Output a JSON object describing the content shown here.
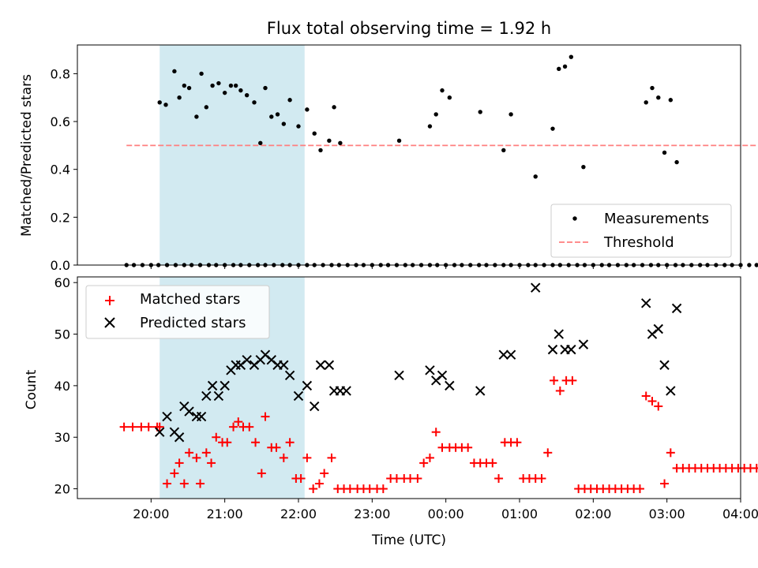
{
  "chart_data": [
    {
      "type": "scatter",
      "title": "Flux total observing time = 1.92 h",
      "ylabel": "Matched/Predicted stars",
      "xlabel": "",
      "ylim": [
        0,
        0.92
      ],
      "xlim_hours": [
        19.0,
        28.0
      ],
      "yticks": [
        "0.0",
        "0.2",
        "0.4",
        "0.6",
        "0.8"
      ],
      "legend": {
        "position": "lower-right",
        "entries": [
          "Measurements",
          "Threshold"
        ]
      },
      "series": [
        {
          "name": "Measurements",
          "marker": "dot",
          "color": "#000000",
          "x": [
            "19:40",
            "19:46",
            "19:53",
            "20:00",
            "20:06",
            "20:13",
            "20:20",
            "20:27",
            "20:33",
            "20:40",
            "20:47",
            "20:53",
            "21:00",
            "21:07",
            "21:13",
            "21:20",
            "21:27",
            "21:33",
            "21:40",
            "21:47",
            "21:53",
            "22:00",
            "22:07",
            "22:13",
            "22:20",
            "22:27",
            "22:33",
            "22:40",
            "22:47",
            "22:53",
            "23:00",
            "23:07",
            "23:13",
            "23:20",
            "23:27",
            "23:33",
            "23:40",
            "23:47",
            "23:53",
            "00:00",
            "00:07",
            "00:13",
            "00:20",
            "00:27",
            "00:33",
            "00:40",
            "00:47",
            "00:53",
            "01:00",
            "01:07",
            "01:13",
            "01:20",
            "01:27",
            "01:33",
            "01:40",
            "01:47",
            "01:53",
            "02:00",
            "02:07",
            "02:13",
            "02:20",
            "02:27",
            "02:33",
            "02:40",
            "02:47",
            "02:53",
            "03:00",
            "03:07",
            "03:13",
            "03:20",
            "03:27",
            "03:33",
            "03:40",
            "03:47",
            "03:53",
            "04:00",
            "04:07",
            "04:13",
            "04:20",
            "04:27",
            "20:07",
            "20:12",
            "20:19",
            "20:23",
            "20:27",
            "20:31",
            "20:37",
            "20:41",
            "20:45",
            "20:50",
            "20:55",
            "21:00",
            "21:05",
            "21:09",
            "21:13",
            "21:18",
            "21:24",
            "21:29",
            "21:33",
            "21:38",
            "21:43",
            "21:48",
            "21:53",
            "22:00",
            "22:07",
            "22:13",
            "22:18",
            "22:25",
            "22:29",
            "22:34",
            "23:22",
            "23:47",
            "23:52",
            "23:57",
            "00:03",
            "00:28",
            "00:47",
            "00:53",
            "01:13",
            "01:27",
            "01:32",
            "01:37",
            "01:42",
            "01:52",
            "02:43",
            "02:48",
            "02:53",
            "02:58",
            "03:03",
            "03:08"
          ],
          "y": [
            0,
            0,
            0,
            0,
            0,
            0,
            0,
            0,
            0,
            0,
            0,
            0,
            0,
            0,
            0,
            0,
            0,
            0,
            0,
            0,
            0,
            0,
            0,
            0,
            0,
            0,
            0,
            0,
            0,
            0,
            0,
            0,
            0,
            0,
            0,
            0,
            0,
            0,
            0,
            0,
            0,
            0,
            0,
            0,
            0,
            0,
            0,
            0,
            0,
            0,
            0,
            0,
            0,
            0,
            0,
            0,
            0,
            0,
            0,
            0,
            0,
            0,
            0,
            0,
            0,
            0,
            0,
            0,
            0,
            0,
            0,
            0,
            0,
            0,
            0,
            0,
            0,
            0,
            0,
            0,
            0.68,
            0.67,
            0.81,
            0.7,
            0.75,
            0.74,
            0.62,
            0.8,
            0.66,
            0.75,
            0.76,
            0.72,
            0.75,
            0.75,
            0.73,
            0.71,
            0.68,
            0.51,
            0.74,
            0.62,
            0.63,
            0.59,
            0.69,
            0.58,
            0.65,
            0.55,
            0.48,
            0.52,
            0.66,
            0.51,
            0.52,
            0.58,
            0.63,
            0.73,
            0.7,
            0.64,
            0.48,
            0.63,
            0.37,
            0.57,
            0.82,
            0.83,
            0.87,
            0.41,
            0.68,
            0.74,
            0.7,
            0.47,
            0.69,
            0.43
          ]
        },
        {
          "name": "Threshold",
          "style": "dashed",
          "color": "#ff7f7f",
          "x": [
            "19:40",
            "04:27"
          ],
          "y": [
            0.5,
            0.5
          ]
        }
      ],
      "shaded_interval": {
        "from": "20:07",
        "to": "22:05",
        "color": "#add8e6"
      }
    },
    {
      "type": "scatter",
      "title": "",
      "ylabel": "Count",
      "xlabel": "Time (UTC)",
      "ylim": [
        18.1,
        61.1
      ],
      "xlim_hours": [
        19.0,
        28.0
      ],
      "yticks": [
        "20",
        "30",
        "40",
        "50",
        "60"
      ],
      "xticks": [
        "20:00",
        "21:00",
        "22:00",
        "23:00",
        "00:00",
        "01:00",
        "02:00",
        "03:00",
        "04:00"
      ],
      "legend": {
        "position": "upper-left",
        "entries": [
          "Matched stars",
          "Predicted stars"
        ]
      },
      "series": [
        {
          "name": "Matched stars",
          "marker": "plus",
          "color": "#ff0000",
          "x": [
            "19:38",
            "19:45",
            "19:52",
            "19:58",
            "20:05",
            "20:07",
            "20:13",
            "20:19",
            "20:23",
            "20:27",
            "20:31",
            "20:37",
            "20:40",
            "20:45",
            "20:49",
            "20:53",
            "20:58",
            "21:02",
            "21:07",
            "21:11",
            "21:15",
            "21:20",
            "21:25",
            "21:30",
            "21:33",
            "21:38",
            "21:42",
            "21:48",
            "21:53",
            "21:58",
            "22:02",
            "22:07",
            "22:12",
            "22:17",
            "22:21",
            "22:27",
            "22:32",
            "22:37",
            "22:42",
            "22:48",
            "22:53",
            "22:58",
            "23:04",
            "23:09",
            "23:15",
            "23:20",
            "23:26",
            "23:31",
            "23:37",
            "23:42",
            "23:47",
            "23:52",
            "23:57",
            "00:03",
            "00:08",
            "00:13",
            "00:18",
            "00:23",
            "00:28",
            "00:33",
            "00:38",
            "00:43",
            "00:48",
            "00:53",
            "00:58",
            "01:03",
            "01:08",
            "01:13",
            "01:18",
            "01:23",
            "01:28",
            "01:33",
            "01:38",
            "01:43",
            "01:48",
            "01:53",
            "01:58",
            "02:03",
            "02:08",
            "02:13",
            "02:18",
            "02:23",
            "02:28",
            "02:33",
            "02:38",
            "02:43",
            "02:48",
            "02:53",
            "02:58",
            "03:03",
            "03:08",
            "03:13",
            "03:18",
            "03:23",
            "03:28",
            "03:33",
            "03:38",
            "03:43",
            "03:48",
            "03:53",
            "03:58",
            "04:03",
            "04:08",
            "04:13",
            "04:18",
            "04:23",
            "04:28"
          ],
          "y": [
            32,
            32,
            32,
            32,
            32,
            32,
            21,
            23,
            25,
            21,
            27,
            26,
            21,
            27,
            25,
            30,
            29,
            29,
            32,
            33,
            32,
            32,
            29,
            23,
            34,
            28,
            28,
            26,
            29,
            22,
            22,
            26,
            20,
            21,
            23,
            26,
            20,
            20,
            20,
            20,
            20,
            20,
            20,
            20,
            22,
            22,
            22,
            22,
            22,
            25,
            26,
            31,
            28,
            28,
            28,
            28,
            28,
            25,
            25,
            25,
            25,
            22,
            29,
            29,
            29,
            22,
            22,
            22,
            22,
            27,
            41,
            39,
            41,
            41,
            20,
            20,
            20,
            20,
            20,
            20,
            20,
            20,
            20,
            20,
            20,
            38,
            37,
            36,
            21,
            27,
            24,
            24,
            24,
            24,
            24,
            24,
            24,
            24,
            24,
            24,
            24,
            24,
            24,
            24,
            24,
            24,
            24
          ]
        },
        {
          "name": "Predicted stars",
          "marker": "x",
          "color": "#000000",
          "x": [
            "20:07",
            "20:13",
            "20:19",
            "20:23",
            "20:27",
            "20:31",
            "20:37",
            "20:41",
            "20:45",
            "20:50",
            "20:55",
            "21:00",
            "21:05",
            "21:09",
            "21:13",
            "21:18",
            "21:24",
            "21:29",
            "21:33",
            "21:38",
            "21:43",
            "21:48",
            "21:53",
            "22:00",
            "22:07",
            "22:13",
            "22:18",
            "22:25",
            "22:29",
            "22:34",
            "22:39",
            "23:22",
            "23:47",
            "23:52",
            "23:57",
            "00:03",
            "00:28",
            "00:47",
            "00:53",
            "01:13",
            "01:27",
            "01:32",
            "01:37",
            "01:42",
            "01:52",
            "02:43",
            "02:48",
            "02:53",
            "02:58",
            "03:03",
            "03:08"
          ],
          "y": [
            31,
            34,
            31,
            30,
            36,
            35,
            34,
            34,
            38,
            40,
            38,
            40,
            43,
            44,
            44,
            45,
            44,
            45,
            46,
            45,
            44,
            44,
            42,
            38,
            40,
            36,
            44,
            44,
            39,
            39,
            39,
            42,
            43,
            41,
            42,
            40,
            39,
            46,
            46,
            59,
            47,
            50,
            47,
            47,
            48,
            56,
            50,
            51,
            44,
            39,
            55
          ]
        }
      ],
      "shaded_interval": {
        "from": "20:07",
        "to": "22:05",
        "color": "#add8e6"
      }
    }
  ]
}
